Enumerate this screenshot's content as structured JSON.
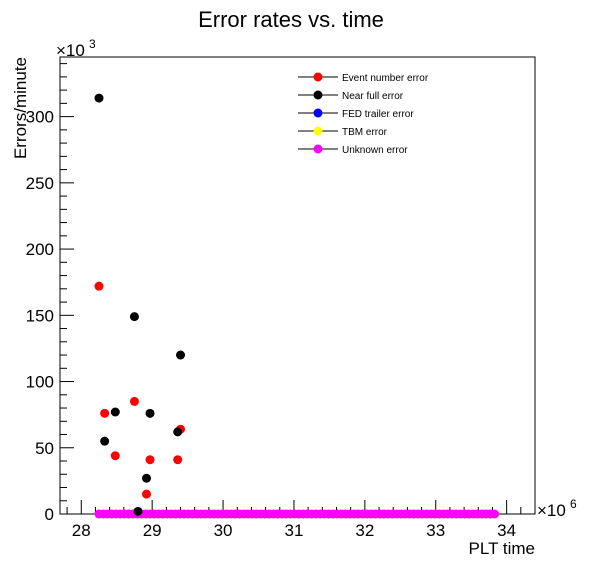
{
  "chart_data": {
    "type": "scatter",
    "title": "Error rates vs. time",
    "xlabel": "PLT time",
    "ylabel": "Errors/minute",
    "x_multiplier": {
      "base": "×10",
      "exp": "6"
    },
    "y_multiplier": {
      "base": "×10",
      "exp": "3"
    },
    "xlim": [
      27700000,
      34400000
    ],
    "ylim": [
      0,
      345000
    ],
    "x_ticks": [
      28000000,
      29000000,
      30000000,
      31000000,
      32000000,
      33000000,
      34000000
    ],
    "x_tick_labels": [
      "28",
      "29",
      "30",
      "31",
      "32",
      "33",
      "34"
    ],
    "y_ticks": [
      0,
      50000,
      100000,
      150000,
      200000,
      250000,
      300000
    ],
    "y_tick_labels": [
      "0",
      "50",
      "100",
      "150",
      "200",
      "250",
      "300"
    ],
    "legend_position": "top-right",
    "series": [
      {
        "name": "Event number error",
        "color": "#ff0000",
        "points": [
          [
            28250000,
            172000
          ],
          [
            28330000,
            76000
          ],
          [
            28480000,
            44000
          ],
          [
            28750000,
            85000
          ],
          [
            28920000,
            15000
          ],
          [
            28970000,
            41000
          ],
          [
            29360000,
            41000
          ],
          [
            29400000,
            64000
          ]
        ]
      },
      {
        "name": "Near full error",
        "color": "#000000",
        "points": [
          [
            28250000,
            314000
          ],
          [
            28330000,
            55000
          ],
          [
            28480000,
            77000
          ],
          [
            28750000,
            149000
          ],
          [
            28800000,
            2000
          ],
          [
            28920000,
            27000
          ],
          [
            28970000,
            76000
          ],
          [
            29360000,
            62000
          ],
          [
            29400000,
            120000
          ]
        ]
      },
      {
        "name": "FED trailer error",
        "color": "#0000ff",
        "points": []
      },
      {
        "name": "TBM error",
        "color": "#ffff00",
        "points": []
      },
      {
        "name": "Unknown error",
        "color": "#ff00ff",
        "baseline": {
          "from": 28250000,
          "to": 33880000,
          "step": 60000,
          "value": 0
        }
      }
    ]
  }
}
